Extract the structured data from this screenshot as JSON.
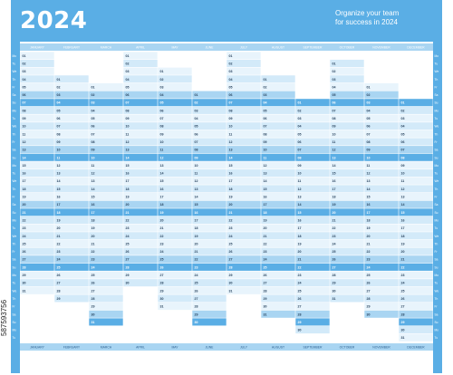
{
  "header": {
    "year": "2024",
    "tagline_line1": "Organize your team",
    "tagline_line2": "for success in 2024"
  },
  "months": [
    "JANUARY",
    "FEBRUARY",
    "MARCH",
    "APRIL",
    "MAY",
    "JUNE",
    "JULY",
    "AUGUST",
    "SEPTEMBER",
    "OCTOBER",
    "NOVEMBER",
    "DECEMBER"
  ],
  "weekdays": [
    "Mo",
    "Tu",
    "We",
    "Th",
    "Fr",
    "Sa",
    "Su"
  ],
  "calendar": {
    "year": 2024,
    "week_start": "Monday",
    "rows": 37,
    "weekend_rows_highlighted": true
  },
  "watermark": "587593756",
  "colors": {
    "header": "#5aaee5",
    "side_bar": "#5aaee5",
    "weekend_row": "#a9d5f2",
    "weekday_row_light": "#e8f4fc",
    "weekday_row_alt": "#d3eaf9",
    "empty_cell": "#ffffff",
    "text": "#1f3b57",
    "text_light": "#ffffff"
  }
}
